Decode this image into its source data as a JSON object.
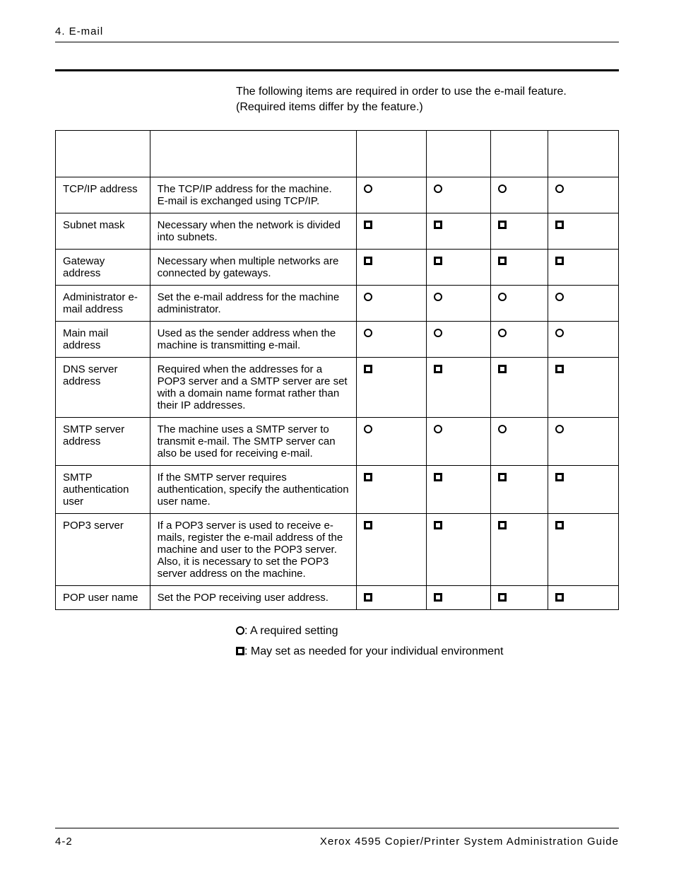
{
  "header": {
    "section": "4. E-mail"
  },
  "intro": "The following items are required in order to use the e-mail feature.  (Required items differ by the feature.)",
  "symbols": {
    "required_label": ": A required setting",
    "optional_label": ": May set as needed for your individual environment"
  },
  "table": {
    "rows": [
      {
        "item": "TCP/IP address",
        "desc": "The TCP/IP address for the machine.\nE-mail is exchanged using TCP/IP.",
        "marks": [
          "circle",
          "circle",
          "circle",
          "circle"
        ]
      },
      {
        "item": "Subnet mask",
        "desc": "Necessary when the network is divided into subnets.",
        "marks": [
          "square",
          "square",
          "square",
          "square"
        ]
      },
      {
        "item": "Gateway address",
        "desc": "Necessary when multiple networks are connected by gateways.",
        "marks": [
          "square",
          "square",
          "square",
          "square"
        ]
      },
      {
        "item": "Administrator e-mail address",
        "desc": "Set the e-mail address for the machine administrator.",
        "marks": [
          "circle",
          "circle",
          "circle",
          "circle"
        ]
      },
      {
        "item": "Main mail address",
        "desc": "Used as the sender address when the machine is transmitting e-mail.",
        "marks": [
          "circle",
          "circle",
          "circle",
          "circle"
        ]
      },
      {
        "item": "DNS server address",
        "desc": "Required when the addresses for a POP3 server and a SMTP server are set with a domain name format rather than their IP addresses.",
        "marks": [
          "square",
          "square",
          "square",
          "square"
        ]
      },
      {
        "item": "SMTP server address",
        "desc": "The machine uses a SMTP server to transmit e-mail. The SMTP server can also be used for receiving e-mail.",
        "marks": [
          "circle",
          "circle",
          "circle",
          "circle"
        ]
      },
      {
        "item": "SMTP authentication user",
        "desc": "If the SMTP server requires authentication, specify the authentication user name.",
        "marks": [
          "square",
          "square",
          "square",
          "square"
        ]
      },
      {
        "item": "POP3 server",
        "desc": "If a POP3 server is used to receive e-mails, register the e-mail address of the machine and user to the POP3 server.\nAlso, it is necessary to set the POP3 server address on the machine.",
        "marks": [
          "square",
          "square",
          "square",
          "square"
        ]
      },
      {
        "item": "POP user name",
        "desc": "Set the POP receiving user address.",
        "marks": [
          "square",
          "square",
          "square",
          "square"
        ]
      }
    ]
  },
  "footer": {
    "page": "4-2",
    "title": "Xerox 4595 Copier/Printer System Administration Guide"
  }
}
